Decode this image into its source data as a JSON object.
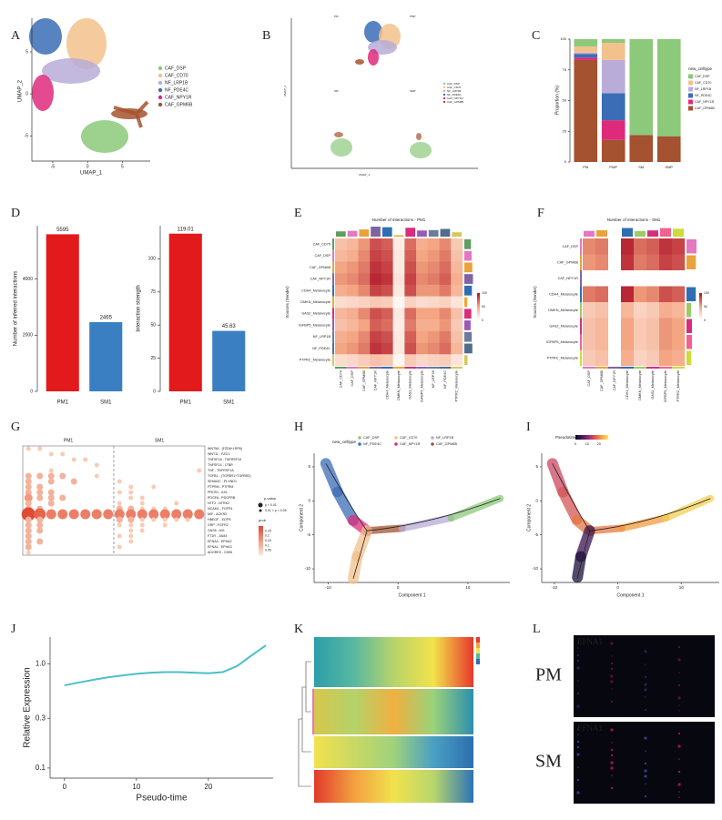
{
  "letters": [
    "A",
    "B",
    "C",
    "D",
    "E",
    "F",
    "G",
    "H",
    "I",
    "J",
    "K",
    "L"
  ],
  "umap": {
    "xlabel": "UMAP_1",
    "ylabel": "UMAP_2",
    "xlim": [
      -8,
      9
    ],
    "ylim": [
      -8,
      9
    ],
    "xticks": [
      -5,
      0,
      5
    ],
    "yticks": [
      -5,
      0,
      5
    ],
    "legend": [
      "CAF_DSP",
      "CAF_CD70",
      "NF_LRP1B",
      "NF_PDE4C",
      "CAF_NPY1R",
      "CAF_GPM6B"
    ],
    "colors": [
      "#8cc97a",
      "#f3c18c",
      "#b9acd8",
      "#3a6db5",
      "#df2a7c",
      "#a4522f"
    ]
  },
  "umap_split": {
    "xlabel": "UMAP_1",
    "ylabel": "UMAP_2",
    "facets": [
      "PM",
      "PMP",
      "SM",
      "SMP"
    ]
  },
  "proportion": {
    "type": "bar",
    "stacked": true,
    "categories": [
      "PM",
      "PMP",
      "SM",
      "SMP"
    ],
    "series": [
      {
        "name": "CAF_DSP",
        "color": "#8cc97a",
        "values": [
          6,
          3,
          78,
          79
        ]
      },
      {
        "name": "CAF_CD70",
        "color": "#f3c18c",
        "values": [
          5,
          14,
          0,
          0
        ]
      },
      {
        "name": "NF_LRP1B",
        "color": "#b9acd8",
        "values": [
          1,
          27,
          0,
          0
        ]
      },
      {
        "name": "NF_PDE4C",
        "color": "#3a6db5",
        "values": [
          3,
          22,
          0,
          0
        ]
      },
      {
        "name": "CAF_NPY1R",
        "color": "#df2a7c",
        "values": [
          2,
          16,
          0,
          0
        ]
      },
      {
        "name": "CAF_GPM6B",
        "color": "#a4522f",
        "values": [
          83,
          18,
          22,
          21
        ]
      }
    ],
    "ylim": [
      0,
      100
    ],
    "yticks": [
      0,
      25,
      50,
      75,
      100
    ],
    "ylabel": "Proportion (%)",
    "legend_title": "new_celltype"
  },
  "interactions": [
    {
      "type": "bar",
      "ylabel": "Number of inferred interactions",
      "categories": [
        "PM1",
        "SM1"
      ],
      "values": [
        5595,
        2465
      ],
      "colors": [
        "#e31a1c",
        "#3a7fc1"
      ],
      "ylim": [
        0,
        5900
      ],
      "yticks": [
        0,
        2000,
        4000
      ]
    },
    {
      "type": "bar",
      "ylabel": "Interaction strength",
      "categories": [
        "PM1",
        "SM1"
      ],
      "values": [
        119.01,
        45.63
      ],
      "colors": [
        "#e31a1c",
        "#3a7fc1"
      ],
      "ylim": [
        0,
        125
      ],
      "yticks": [
        0,
        25,
        50,
        75,
        100
      ]
    }
  ],
  "heatmaps": [
    {
      "type": "heatmap",
      "title": "Number of interactions - PM1",
      "ylabel": "Sources (Sender)",
      "clim": [
        0,
        100
      ],
      "cticks": [
        0,
        50,
        100
      ],
      "labels": [
        "CAF_CD70",
        "CAF_DSP",
        "CAF_GPM6B",
        "CAF_NPY1R",
        "CDH4_Melanocyte",
        "DMKN_Melanocyte",
        "GAS2_Melanocyte",
        "IGFBP5_Melanocyte",
        "NF_LRP1B",
        "NF_PDE4C",
        "PTPRC_Melanocyte"
      ],
      "label_colors": [
        "#5e9e5e",
        "#e377c2",
        "#e8a33d",
        "#8064a2",
        "#2e6fb3",
        "#f0a830",
        "#d62d7f",
        "#9b59b6",
        "#6c7c9c",
        "#4f6d8f",
        "#d4c85a"
      ],
      "values": [
        [
          35,
          40,
          55,
          80,
          75,
          10,
          70,
          45,
          50,
          60,
          30
        ],
        [
          40,
          45,
          60,
          85,
          80,
          12,
          75,
          50,
          55,
          65,
          35
        ],
        [
          50,
          55,
          65,
          90,
          85,
          12,
          80,
          55,
          60,
          70,
          40
        ],
        [
          55,
          60,
          70,
          95,
          90,
          15,
          85,
          60,
          65,
          75,
          45
        ],
        [
          45,
          50,
          60,
          85,
          80,
          12,
          80,
          55,
          55,
          65,
          40
        ],
        [
          20,
          22,
          25,
          30,
          28,
          5,
          25,
          20,
          22,
          25,
          15
        ],
        [
          40,
          45,
          60,
          80,
          75,
          12,
          70,
          50,
          50,
          60,
          35
        ],
        [
          35,
          40,
          50,
          75,
          70,
          10,
          65,
          45,
          45,
          55,
          30
        ],
        [
          45,
          50,
          60,
          85,
          80,
          12,
          75,
          50,
          55,
          65,
          35
        ],
        [
          50,
          55,
          65,
          90,
          85,
          12,
          80,
          55,
          60,
          70,
          40
        ],
        [
          20,
          22,
          28,
          35,
          32,
          5,
          30,
          22,
          25,
          28,
          15
        ]
      ]
    },
    {
      "type": "heatmap",
      "title": "Number of interactions - SM1",
      "ylabel": "Sources (Sender)",
      "clim": [
        0,
        100
      ],
      "cticks": [
        0,
        50,
        100
      ],
      "labels": [
        "CAF_DSP",
        "CAF_GPM6B",
        "CAF_NPY1R",
        "CDH4_Melanocyte",
        "DMKN_Melanocyte",
        "GAS2_Melanocyte",
        "IGFBP5_Melanocyte",
        "PTPRC_Melanocyte"
      ],
      "label_colors": [
        "#e377c2",
        "#e8a33d",
        "#8064a2",
        "#2e6fb3",
        "#9ccc65",
        "#d62d7f",
        "#f06292",
        "#cddc39"
      ],
      "values": [
        [
          60,
          65,
          0,
          95,
          70,
          75,
          90,
          85
        ],
        [
          55,
          60,
          0,
          90,
          65,
          70,
          85,
          80
        ],
        [
          0,
          0,
          0,
          0,
          0,
          0,
          0,
          0
        ],
        [
          65,
          70,
          0,
          95,
          55,
          60,
          80,
          75
        ],
        [
          30,
          35,
          0,
          40,
          25,
          30,
          45,
          40
        ],
        [
          35,
          40,
          0,
          50,
          30,
          35,
          55,
          50
        ],
        [
          35,
          40,
          0,
          50,
          30,
          35,
          55,
          50
        ],
        [
          30,
          35,
          0,
          45,
          25,
          30,
          50,
          45
        ]
      ]
    }
  ],
  "dotplot": {
    "groups": [
      "PM1",
      "SM1"
    ],
    "pvalue_title": "p-value",
    "pvalue_legend": [
      "p < 0.01",
      "0.01 < p < 0.05"
    ],
    "prob_title": "prob",
    "prob_ticks": [
      0.05,
      0.1,
      0.15,
      0.2,
      0.25
    ],
    "prob_lim": [
      0,
      0.3
    ],
    "pairs": [
      "WNT5A - (FZD6+LRP6)",
      "WNT11 - FZD1",
      "TNFSF18 - TNFRSF18",
      "TNFSF14 - LTBR",
      "TNF - TNFRSF1A",
      "TGFB1 - (TGFBR1+TGFBR2)",
      "SEMA3C - PLXND1",
      "PTPRM - PTPRM",
      "PROS1 - AXL",
      "PDGFA - PDGFRB",
      "NTF3 - NTRK2",
      "NCAM1 - FGFR1",
      "MIF - ACKR3",
      "HBEGF - EGFR",
      "GRP - FGFR2",
      "GAS6 - AXL",
      "FT1R - JAM3",
      "EFNA4 - EPHA2",
      "EFNA1 - EPHA3",
      "ADGRE5 - CD55"
    ],
    "prob": [
      [
        0.05,
        0.05,
        null,
        null,
        null,
        null,
        null,
        null,
        null,
        null,
        null,
        null,
        null,
        null,
        null,
        null
      ],
      [
        null,
        null,
        0.05,
        0.05,
        null,
        null,
        null,
        null,
        null,
        null,
        null,
        null,
        null,
        null,
        null,
        null
      ],
      [
        null,
        null,
        null,
        null,
        0.05,
        0.05,
        null,
        null,
        null,
        null,
        null,
        null,
        null,
        null,
        null,
        null
      ],
      [
        null,
        null,
        null,
        null,
        null,
        null,
        0.05,
        null,
        null,
        null,
        null,
        null,
        null,
        null,
        null,
        null
      ],
      [
        null,
        null,
        0.05,
        null,
        null,
        null,
        null,
        null,
        null,
        null,
        null,
        null,
        null,
        null,
        null,
        0.05
      ],
      [
        0.1,
        0.1,
        0.1,
        0.1,
        null,
        null,
        0.05,
        null,
        null,
        null,
        null,
        null,
        null,
        null,
        null,
        null
      ],
      [
        0.1,
        null,
        0.1,
        null,
        0.1,
        null,
        null,
        null,
        0.05,
        null,
        null,
        null,
        null,
        null,
        null,
        null
      ],
      [
        0.1,
        0.1,
        null,
        null,
        null,
        null,
        null,
        null,
        null,
        0.05,
        null,
        0.05,
        null,
        null,
        null,
        null
      ],
      [
        0.1,
        0.1,
        0.1,
        null,
        null,
        null,
        null,
        null,
        0.05,
        0.05,
        null,
        null,
        null,
        null,
        null,
        null
      ],
      [
        0.15,
        0.1,
        0.1,
        0.1,
        null,
        null,
        null,
        null,
        null,
        0.05,
        0.05,
        null,
        null,
        null,
        null,
        null
      ],
      [
        0.1,
        null,
        0.1,
        null,
        null,
        null,
        null,
        null,
        0.05,
        null,
        0.05,
        null,
        null,
        0.05,
        null,
        null
      ],
      [
        0.1,
        0.1,
        null,
        null,
        null,
        null,
        null,
        null,
        0.1,
        0.1,
        0.05,
        0.05,
        0.05,
        null,
        null,
        null
      ],
      [
        0.3,
        0.25,
        0.2,
        0.2,
        0.2,
        0.2,
        0.2,
        0.2,
        0.2,
        0.2,
        0.2,
        0.2,
        0.2,
        0.2,
        0.2,
        0.2
      ],
      [
        0.1,
        0.1,
        null,
        null,
        null,
        null,
        null,
        null,
        0.1,
        0.1,
        0.05,
        0.05,
        0.05,
        0.05,
        0.05,
        null
      ],
      [
        0.1,
        0.1,
        null,
        null,
        null,
        null,
        null,
        null,
        0.05,
        0.05,
        0.05,
        null,
        0.05,
        null,
        null,
        null
      ],
      [
        0.1,
        0.1,
        null,
        null,
        null,
        null,
        null,
        null,
        null,
        0.05,
        0.05,
        null,
        null,
        null,
        null,
        null
      ],
      [
        0.1,
        null,
        null,
        null,
        null,
        null,
        null,
        null,
        0.05,
        0.05,
        null,
        null,
        null,
        null,
        null,
        null
      ],
      [
        0.1,
        0.1,
        null,
        null,
        null,
        null,
        null,
        null,
        null,
        0.05,
        null,
        null,
        null,
        null,
        null,
        null
      ],
      [
        0.1,
        null,
        null,
        null,
        null,
        null,
        null,
        null,
        0.05,
        null,
        null,
        null,
        null,
        null,
        null,
        null
      ],
      [
        0.05,
        null,
        null,
        null,
        null,
        null,
        null,
        null,
        null,
        null,
        null,
        null,
        null,
        null,
        null,
        null
      ]
    ]
  },
  "trajectory": {
    "xlabel": "Component 1",
    "ylabel": "Component 2",
    "legend_title": "new_celltype",
    "xlim": [
      -12,
      16
    ],
    "ylim": [
      -12,
      7
    ],
    "xticks": [
      -10,
      0,
      10
    ],
    "yticks": [
      -10,
      -5,
      0,
      5
    ]
  },
  "pseudotime": {
    "xlabel": "Component 1",
    "ylabel": "Component 2",
    "legend_title": "Pseudotime",
    "clim": [
      0,
      28
    ],
    "cticks": [
      0,
      10,
      20
    ],
    "xlim": [
      -12,
      16
    ],
    "ylim": [
      -12,
      7
    ],
    "xticks": [
      -10,
      0,
      10
    ],
    "yticks": [
      -10,
      -5,
      0,
      5
    ]
  },
  "expression": {
    "type": "line",
    "xlabel": "Pseudo-time",
    "ylabel": "Relative Expression",
    "log_scale": true,
    "color": "#4bbfc7",
    "x": [
      0,
      2,
      4,
      6,
      8,
      10,
      12,
      14,
      16,
      18,
      20,
      22,
      24,
      26,
      28
    ],
    "values": [
      0.62,
      0.66,
      0.7,
      0.74,
      0.77,
      0.8,
      0.82,
      0.83,
      0.83,
      0.82,
      0.81,
      0.83,
      0.95,
      1.2,
      1.5
    ],
    "xlim": [
      -2,
      29
    ],
    "ylim": [
      0.08,
      1.8
    ],
    "xticks": [
      0,
      10,
      20
    ],
    "yticks": [
      0.1,
      0.3,
      {
        "value": 1,
        "label": "1.0"
      }
    ]
  },
  "spatial": {
    "samples": [
      "PM",
      "SM"
    ],
    "gene": "EFNA1"
  }
}
